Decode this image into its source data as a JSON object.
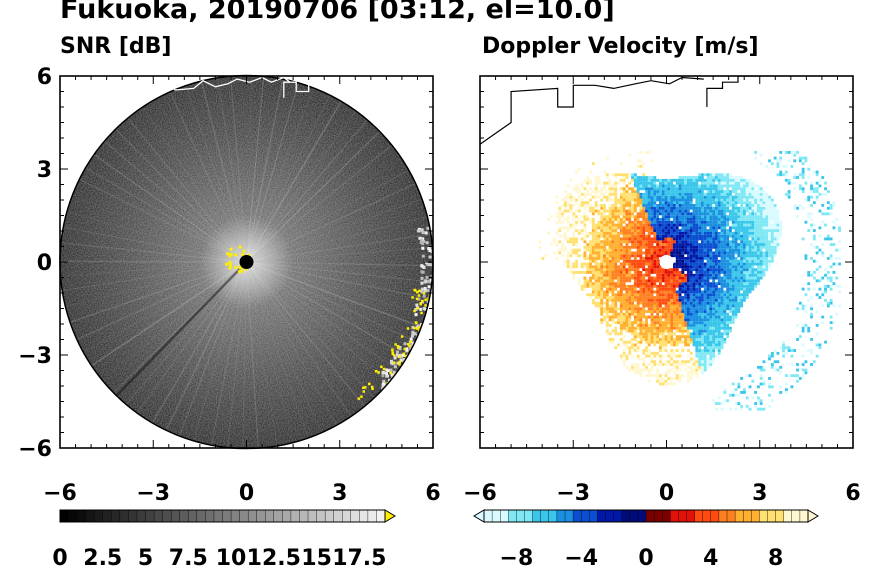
{
  "figure": {
    "title": "Fukuoka, 20190706 [03:12, el=10.0]"
  },
  "chart_data": [
    {
      "type": "heatmap",
      "title": "SNR [dB]",
      "plot": "polar radar PPI",
      "xlim": [
        -6,
        6
      ],
      "ylim": [
        -6,
        6
      ],
      "xticks": [
        "−6",
        "−3",
        "0",
        "3",
        "6"
      ],
      "yticks": [
        "6",
        "3",
        "0",
        "−3",
        "−6"
      ],
      "range_max": 6,
      "colorbar": {
        "min": 0,
        "max": 19,
        "step": 0.5,
        "extend": "max",
        "tick_labels": [
          "0",
          "2.5",
          "5",
          "7.5",
          "10",
          "12.5",
          "15",
          "17.5"
        ],
        "low_color": "#000000",
        "high_color": "#f2f2f2",
        "extend_color": "#ffee00"
      },
      "features": [
        "gray noise field",
        "bright clutter near origin",
        "coastline top",
        "echo near east edge"
      ]
    },
    {
      "type": "heatmap",
      "title": "Doppler Velocity [m/s]",
      "plot": "polar radar PPI",
      "xlim": [
        -6,
        6
      ],
      "ylim": [
        -6,
        6
      ],
      "xticks": [
        "−6",
        "−3",
        "0",
        "3",
        "6"
      ],
      "yticks": [],
      "colorbar": {
        "min": -10,
        "max": 10,
        "step": 0.5,
        "extend": "both",
        "tick_labels": [
          "−8",
          "−4",
          "0",
          "4",
          "8"
        ],
        "negative_colors": [
          "#d9fbff",
          "#7fe8f4",
          "#39c6ea",
          "#1b8fe0",
          "#0a4fd0",
          "#0018a8",
          "#000a78"
        ],
        "positive_colors": [
          "#7a0000",
          "#e0120a",
          "#ff4a10",
          "#ff8020",
          "#ffb030",
          "#ffe070",
          "#fff7d0"
        ]
      },
      "features": [
        "negative velocities east side",
        "positive velocities west side",
        "coastline top"
      ]
    }
  ]
}
